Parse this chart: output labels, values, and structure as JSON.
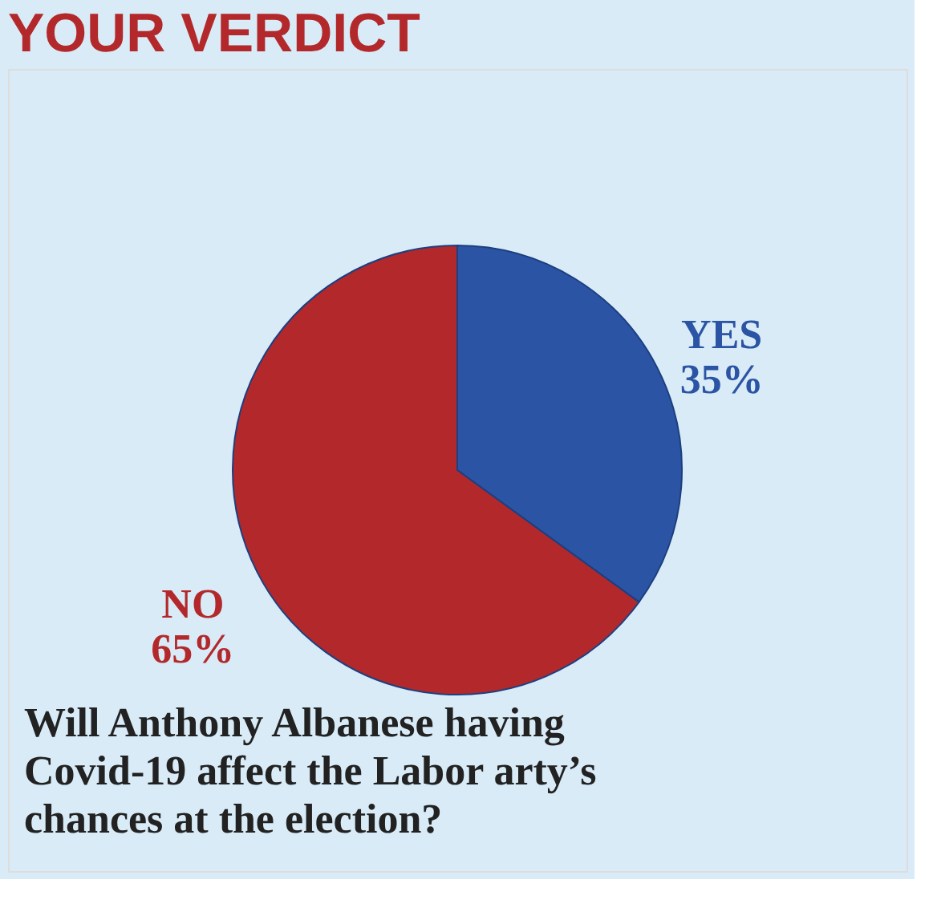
{
  "chart_data": {
    "type": "pie",
    "title": "YOUR VERDICT",
    "categories": [
      "YES",
      "NO"
    ],
    "values": [
      35,
      65
    ],
    "colors": [
      "#2b54a4",
      "#b3292b"
    ],
    "value_labels": [
      "35%",
      "65%"
    ],
    "annotations": [
      "Will Anthony Albanese having Covid-19 affect the Labor arty’s chances at the election?"
    ]
  }
}
